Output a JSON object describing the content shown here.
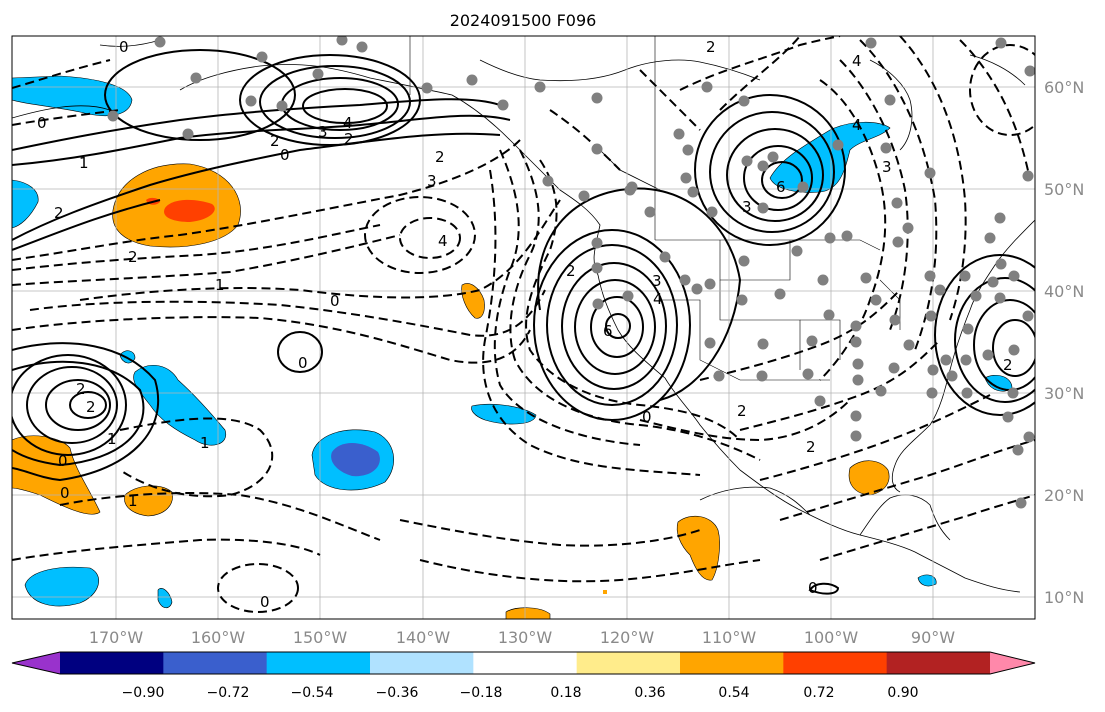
{
  "title": "2024091500 F096",
  "axes": {
    "lon_labels": [
      "170°W",
      "160°W",
      "150°W",
      "140°W",
      "130°W",
      "120°W",
      "110°W",
      "100°W",
      "90°W"
    ],
    "lat_labels": [
      "60°N",
      "50°N",
      "40°N",
      "30°N",
      "20°N",
      "10°N"
    ]
  },
  "colorbar": {
    "colors": [
      "#9932cc",
      "#000080",
      "#3a5fcd",
      "#00bfff",
      "#b0e2ff",
      "#ffffff",
      "#ffec8b",
      "#ffa500",
      "#ff4000",
      "#b22222",
      "#ff88aa"
    ],
    "tick_labels": [
      "−0.90",
      "−0.72",
      "−0.54",
      "−0.36",
      "−0.18",
      "0.18",
      "0.36",
      "0.54",
      "0.72",
      "0.90"
    ]
  },
  "contour_labels": [
    "0",
    "0",
    "1",
    "2",
    "2",
    "2",
    "3",
    "4",
    "2",
    "0",
    "2",
    "3",
    "4",
    "0",
    "1",
    "2",
    "3",
    "4",
    "6",
    "3",
    "4",
    "6",
    "0",
    "2",
    "2",
    "0",
    "4",
    "3",
    "2",
    "1",
    "0",
    "0",
    "1",
    "0",
    "1",
    "2",
    "2",
    "2",
    "0"
  ]
}
